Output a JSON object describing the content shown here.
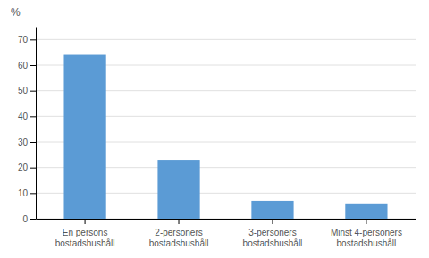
{
  "chart_data": {
    "type": "bar",
    "y_label": "%",
    "categories": [
      "En persons\nbostadshushåll",
      "2-personers\nbostadshushåll",
      "3-personers\nbostadshushåll",
      "Minst 4-personers\nbostadshushåll"
    ],
    "values": [
      64,
      23,
      7,
      6
    ],
    "color": "#5b9bd5",
    "ylim": [
      0,
      75
    ],
    "yticks": [
      0,
      10,
      20,
      30,
      40,
      50,
      60,
      70
    ],
    "grid": true
  }
}
